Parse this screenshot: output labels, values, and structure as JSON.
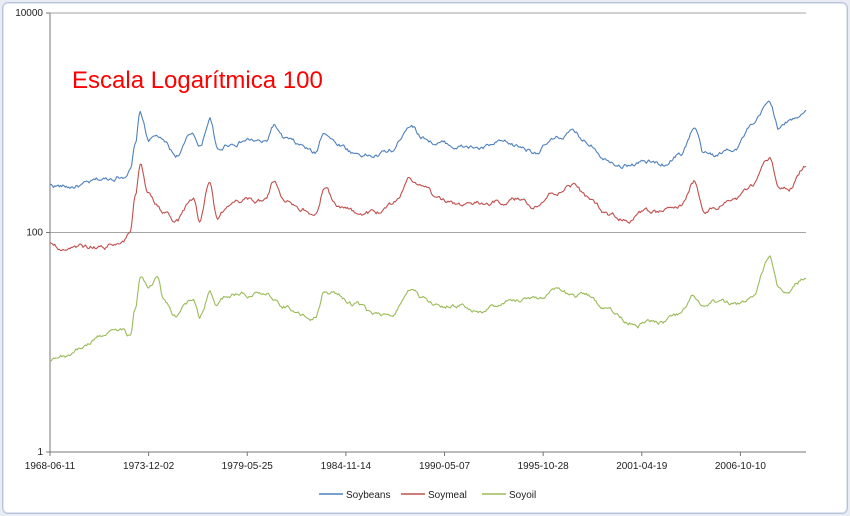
{
  "chart_data": {
    "type": "line",
    "title": "",
    "xlabel": "",
    "ylabel": "",
    "annotation": "Escala Logarítmica 100",
    "annotation_color": "#ff0000",
    "y_scale": "log",
    "ylim": [
      1,
      10000
    ],
    "y_ticks": [
      "10000",
      "100",
      "1"
    ],
    "y_tick_values": [
      10000,
      100,
      1
    ],
    "xlim": [
      "1968-06-11",
      "2010-06-01"
    ],
    "x_ticks": [
      "1968-06-11",
      "1973-12-02",
      "1979-05-25",
      "1984-11-14",
      "1990-05-07",
      "1995-10-28",
      "2001-04-19",
      "2006-10-10"
    ],
    "gridlines": true,
    "legend_position": "bottom",
    "x": [
      "1968-06-11",
      "1969-06-01",
      "1970-06-01",
      "1971-06-01",
      "1972-06-01",
      "1972-12-01",
      "1973-03-01",
      "1973-06-15",
      "1973-12-01",
      "1974-06-01",
      "1974-10-01",
      "1975-06-01",
      "1976-06-01",
      "1976-10-01",
      "1977-05-01",
      "1977-10-01",
      "1978-06-01",
      "1979-06-01",
      "1980-06-01",
      "1980-11-15",
      "1981-06-01",
      "1982-06-01",
      "1983-03-01",
      "1983-09-01",
      "1984-06-01",
      "1985-06-01",
      "1986-06-01",
      "1987-06-01",
      "1988-06-15",
      "1989-03-01",
      "1990-01-01",
      "1991-06-01",
      "1992-06-01",
      "1993-07-01",
      "1994-06-01",
      "1995-06-01",
      "1996-06-01",
      "1997-05-01",
      "1998-06-01",
      "1999-06-01",
      "2000-06-01",
      "2001-06-01",
      "2002-06-01",
      "2003-06-01",
      "2004-04-01",
      "2004-10-01",
      "2005-06-01",
      "2006-06-01",
      "2007-06-01",
      "2008-06-01",
      "2008-12-01",
      "2009-06-01",
      "2010-06-01"
    ],
    "series": [
      {
        "name": "Soybeans",
        "color": "#4f81bd",
        "values": [
          270,
          260,
          270,
          300,
          330,
          380,
          600,
          1200,
          700,
          750,
          650,
          500,
          800,
          600,
          1100,
          550,
          650,
          700,
          650,
          950,
          700,
          600,
          520,
          850,
          650,
          530,
          500,
          550,
          1000,
          750,
          650,
          600,
          580,
          640,
          600,
          560,
          680,
          800,
          650,
          480,
          420,
          440,
          420,
          520,
          900,
          500,
          500,
          600,
          900,
          1500,
          900,
          1000,
          1300
        ]
      },
      {
        "name": "Soymeal",
        "color": "#c0504d",
        "values": [
          78,
          72,
          74,
          75,
          85,
          100,
          200,
          400,
          230,
          180,
          150,
          120,
          200,
          130,
          300,
          130,
          180,
          200,
          190,
          280,
          200,
          170,
          150,
          250,
          170,
          150,
          150,
          170,
          300,
          250,
          190,
          180,
          180,
          190,
          200,
          180,
          230,
          280,
          200,
          140,
          130,
          150,
          150,
          170,
          300,
          160,
          170,
          200,
          250,
          450,
          250,
          250,
          400
        ]
      },
      {
        "name": "Soyoil",
        "color": "#9bbb59",
        "values": [
          7,
          7.5,
          9,
          12,
          12,
          11,
          20,
          40,
          30,
          40,
          25,
          18,
          25,
          17,
          28,
          22,
          27,
          27,
          28,
          25,
          22,
          19,
          18,
          30,
          28,
          22,
          17,
          16,
          30,
          24,
          22,
          22,
          20,
          22,
          24,
          26,
          28,
          26,
          26,
          20,
          16,
          15,
          15,
          17,
          25,
          20,
          22,
          22,
          25,
          60,
          30,
          30,
          38
        ]
      }
    ]
  }
}
